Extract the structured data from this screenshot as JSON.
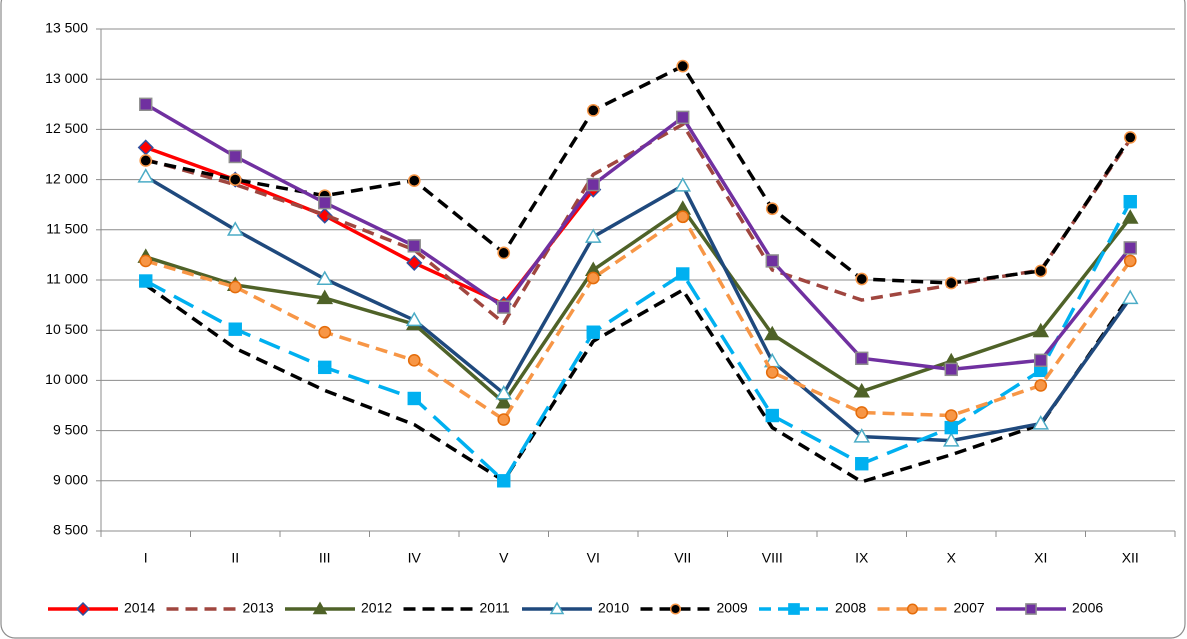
{
  "chart_data": {
    "type": "line",
    "categories": [
      "I",
      "II",
      "III",
      "IV",
      "V",
      "VI",
      "VII",
      "VIII",
      "IX",
      "X",
      "XI",
      "XII"
    ],
    "ylim": [
      8500,
      13500
    ],
    "yticks": [
      {
        "value": 8500,
        "label": "8 500"
      },
      {
        "value": 9000,
        "label": "9 000"
      },
      {
        "value": 9500,
        "label": "9 500"
      },
      {
        "value": 10000,
        "label": "10 000"
      },
      {
        "value": 10500,
        "label": "10 500"
      },
      {
        "value": 11000,
        "label": "11 000"
      },
      {
        "value": 11500,
        "label": "11 500"
      },
      {
        "value": 12000,
        "label": "12 000"
      },
      {
        "value": 12500,
        "label": "12 500"
      },
      {
        "value": 13000,
        "label": "13 000"
      },
      {
        "value": 13500,
        "label": "13 500"
      }
    ],
    "grid": true,
    "legend": "bottom",
    "series": [
      {
        "name": "2014",
        "color": "#ff0000",
        "dash": false,
        "marker": "diamond",
        "marker_edge": "#2f4f9f",
        "values": [
          12320,
          12000,
          11640,
          11170,
          10760,
          11900,
          null,
          null,
          null,
          null,
          null,
          null
        ]
      },
      {
        "name": "2013",
        "color": "#a0463f",
        "dash": true,
        "marker": "none",
        "values": [
          12200,
          11950,
          11650,
          11300,
          10570,
          12050,
          12550,
          11100,
          10800,
          10950,
          11100,
          12400
        ]
      },
      {
        "name": "2012",
        "color": "#4f6228",
        "dash": false,
        "marker": "triangle",
        "marker_edge": "#4f6228",
        "values": [
          11230,
          10950,
          10820,
          10560,
          9780,
          11100,
          11710,
          10460,
          9890,
          10190,
          10490,
          11620
        ]
      },
      {
        "name": "2011",
        "color": "#000000",
        "dash": true,
        "marker": "none",
        "values": [
          10950,
          10320,
          9900,
          9560,
          9000,
          10390,
          10900,
          9530,
          8990,
          9260,
          9560,
          10850
        ]
      },
      {
        "name": "2010",
        "color": "#1f497d",
        "dash": false,
        "marker": "open-triangle",
        "marker_edge": "#4bacc6",
        "values": [
          12030,
          11500,
          11010,
          10600,
          9870,
          11430,
          11940,
          10190,
          9440,
          9400,
          9570,
          10820
        ]
      },
      {
        "name": "2009",
        "color": "#000000",
        "dash": true,
        "marker": "circle",
        "marker_edge": "#f79646",
        "values": [
          12190,
          12000,
          11840,
          11990,
          11270,
          12690,
          13130,
          11710,
          11010,
          10970,
          11090,
          12420
        ]
      },
      {
        "name": "2008",
        "color": "#00b0f0",
        "dash": true,
        "marker": "square",
        "marker_edge": "#00b0f0",
        "values": [
          10990,
          10510,
          10130,
          9820,
          9000,
          10480,
          11060,
          9650,
          9170,
          9530,
          10100,
          11780
        ]
      },
      {
        "name": "2007",
        "color": "#f79646",
        "dash": true,
        "marker": "circle",
        "marker_edge": "#e46c0a",
        "values": [
          11190,
          10930,
          10480,
          10200,
          9610,
          11020,
          11630,
          10080,
          9680,
          9650,
          9950,
          11190
        ]
      },
      {
        "name": "2006",
        "color": "#7030a0",
        "dash": false,
        "marker": "square",
        "marker_edge": "#8e8e8e",
        "values": [
          12750,
          12230,
          11770,
          11340,
          10730,
          11950,
          12620,
          11190,
          10220,
          10110,
          10200,
          11320
        ]
      }
    ]
  }
}
